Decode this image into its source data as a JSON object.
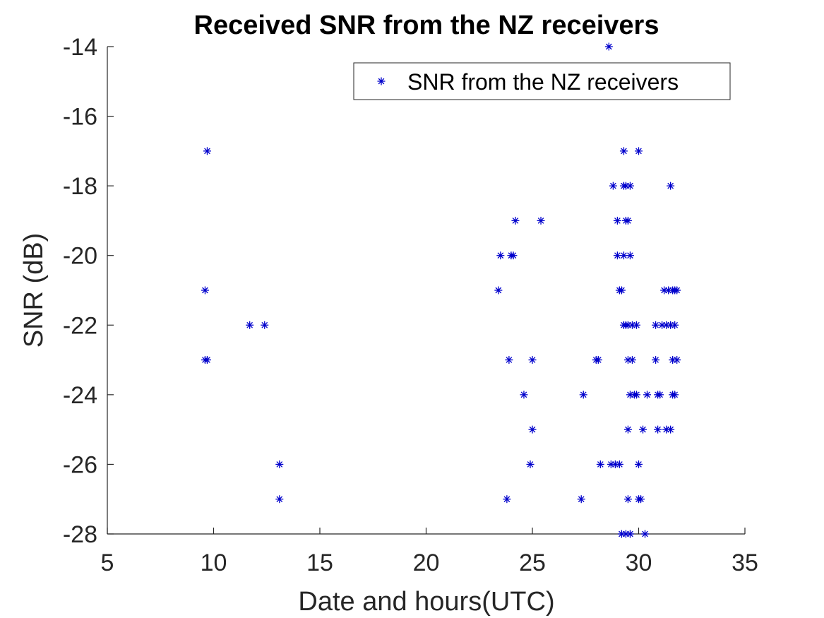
{
  "chart_data": {
    "type": "scatter",
    "title": "Received SNR from the NZ receivers",
    "xlabel": "Date and hours(UTC)",
    "ylabel": "SNR (dB)",
    "xlim": [
      5,
      35
    ],
    "ylim": [
      -28,
      -14
    ],
    "xticks": [
      5,
      10,
      15,
      20,
      25,
      30,
      35
    ],
    "yticks": [
      -28,
      -26,
      -24,
      -22,
      -20,
      -18,
      -16,
      -14
    ],
    "grid": false,
    "legend_position": "top-right",
    "marker": "asterisk",
    "series": [
      {
        "name": "SNR from the NZ receivers",
        "color": "#0000cc",
        "points": [
          [
            9.7,
            -17
          ],
          [
            9.6,
            -21
          ],
          [
            9.6,
            -23
          ],
          [
            9.7,
            -23
          ],
          [
            11.7,
            -22
          ],
          [
            12.4,
            -22
          ],
          [
            13.1,
            -26
          ],
          [
            13.1,
            -27
          ],
          [
            23.4,
            -21
          ],
          [
            23.5,
            -20
          ],
          [
            24.0,
            -20
          ],
          [
            24.1,
            -20
          ],
          [
            24.2,
            -19
          ],
          [
            23.8,
            -27
          ],
          [
            23.9,
            -23
          ],
          [
            24.6,
            -24
          ],
          [
            24.9,
            -26
          ],
          [
            25.0,
            -25
          ],
          [
            25.0,
            -23
          ],
          [
            25.4,
            -19
          ],
          [
            27.3,
            -27
          ],
          [
            27.4,
            -24
          ],
          [
            28.0,
            -23
          ],
          [
            28.1,
            -23
          ],
          [
            28.2,
            -26
          ],
          [
            28.6,
            -14
          ],
          [
            28.7,
            -26
          ],
          [
            28.8,
            -18
          ],
          [
            28.9,
            -26
          ],
          [
            29.0,
            -19
          ],
          [
            29.0,
            -20
          ],
          [
            29.1,
            -26
          ],
          [
            29.1,
            -21
          ],
          [
            29.2,
            -21
          ],
          [
            29.2,
            -28
          ],
          [
            29.3,
            -20
          ],
          [
            29.3,
            -17
          ],
          [
            29.3,
            -18
          ],
          [
            29.3,
            -22
          ],
          [
            29.4,
            -22
          ],
          [
            29.4,
            -18
          ],
          [
            29.4,
            -19
          ],
          [
            29.5,
            -19
          ],
          [
            29.4,
            -28
          ],
          [
            29.5,
            -22
          ],
          [
            29.5,
            -23
          ],
          [
            29.5,
            -25
          ],
          [
            29.5,
            -27
          ],
          [
            29.6,
            -18
          ],
          [
            29.6,
            -20
          ],
          [
            29.6,
            -24
          ],
          [
            29.6,
            -28
          ],
          [
            29.7,
            -22
          ],
          [
            29.7,
            -23
          ],
          [
            29.8,
            -24
          ],
          [
            29.9,
            -22
          ],
          [
            29.9,
            -24
          ],
          [
            30.0,
            -17
          ],
          [
            30.0,
            -26
          ],
          [
            30.0,
            -27
          ],
          [
            30.1,
            -27
          ],
          [
            30.2,
            -25
          ],
          [
            30.3,
            -28
          ],
          [
            30.4,
            -24
          ],
          [
            30.8,
            -23
          ],
          [
            30.8,
            -22
          ],
          [
            30.9,
            -24
          ],
          [
            30.9,
            -25
          ],
          [
            31.0,
            -24
          ],
          [
            31.1,
            -22
          ],
          [
            31.2,
            -21
          ],
          [
            31.3,
            -22
          ],
          [
            31.3,
            -25
          ],
          [
            31.4,
            -21
          ],
          [
            31.5,
            -18
          ],
          [
            31.5,
            -22
          ],
          [
            31.5,
            -25
          ],
          [
            31.6,
            -24
          ],
          [
            31.6,
            -23
          ],
          [
            31.6,
            -21
          ],
          [
            31.7,
            -22
          ],
          [
            31.7,
            -24
          ],
          [
            31.7,
            -21
          ],
          [
            31.8,
            -23
          ],
          [
            31.8,
            -21
          ]
        ]
      }
    ]
  }
}
